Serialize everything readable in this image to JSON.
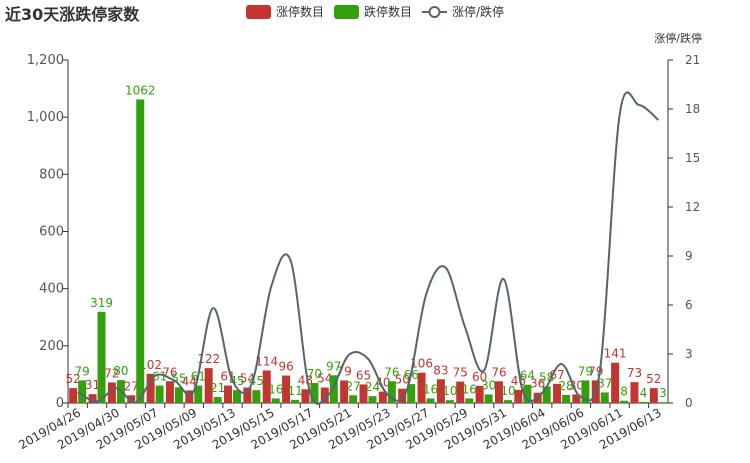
{
  "chart_data": {
    "type": "bar-line",
    "title": "近30天涨跌停家数",
    "y2_axis_label": "涨停/跌停",
    "categories": [
      "2019/04/26",
      null,
      "2019/04/30",
      null,
      "2019/05/07",
      null,
      "2019/05/09",
      null,
      "2019/05/13",
      null,
      "2019/05/15",
      null,
      "2019/05/17",
      null,
      "2019/05/21",
      null,
      "2019/05/23",
      null,
      "2019/05/27",
      null,
      "2019/05/29",
      null,
      "2019/05/31",
      null,
      "2019/06/04",
      null,
      "2019/06/06",
      null,
      "2019/06/11",
      null,
      "2019/06/13"
    ],
    "series": [
      {
        "name": "涨停数目",
        "type": "bar",
        "color": "#c23531",
        "values": [
          52,
          31,
          72,
          27,
          102,
          76,
          44,
          122,
          61,
          54,
          114,
          96,
          48,
          54,
          79,
          65,
          40,
          50,
          106,
          83,
          75,
          60,
          76,
          46,
          36,
          67,
          30,
          79,
          141,
          73,
          52
        ]
      },
      {
        "name": "跌停数目",
        "type": "bar",
        "color": "#33a00e",
        "values": [
          79,
          319,
          80,
          1062,
          61,
          55,
          61,
          21,
          45,
          45,
          16,
          11,
          70,
          97,
          27,
          24,
          76,
          66,
          16,
          10,
          16,
          30,
          10,
          64,
          58,
          28,
          79,
          37,
          8,
          4,
          3
        ]
      },
      {
        "name": "涨停/跌停",
        "type": "line",
        "axis": "y2",
        "color": "#546570",
        "values": [
          0.66,
          0.1,
          0.9,
          0.03,
          1.67,
          1.38,
          0.72,
          5.81,
          1.36,
          1.2,
          7.13,
          8.73,
          0.69,
          0.56,
          2.93,
          2.71,
          0.53,
          0.76,
          6.63,
          8.3,
          4.69,
          2,
          7.6,
          0.72,
          0.62,
          2.39,
          0.38,
          2.14,
          17.63,
          18.25,
          17.33
        ]
      }
    ],
    "ylim": [
      0,
      1200
    ],
    "yticks": [
      0,
      200,
      400,
      600,
      800,
      {
        "value": 1000,
        "label": "1,000"
      },
      {
        "value": 1200,
        "label": "1,200"
      }
    ],
    "y2lim": [
      0,
      21
    ],
    "y2ticks": [
      0,
      3,
      6,
      9,
      12,
      15,
      18,
      21
    ]
  }
}
